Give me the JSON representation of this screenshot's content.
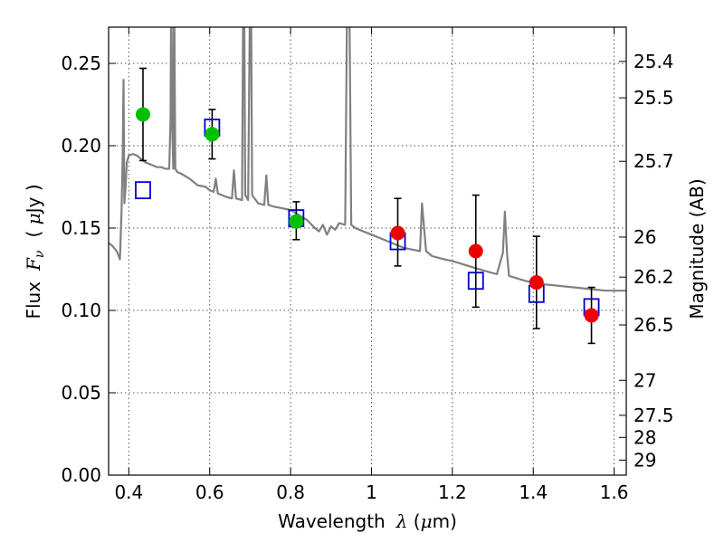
{
  "chart_data": {
    "type": "scatter",
    "xlabel_text": "Wavelength",
    "xlabel_symbol": "λ",
    "xlabel_unit_open": " (",
    "xlabel_unit_mu": "μ",
    "xlabel_unit_rest": "m)",
    "ylabel_text": "Flux",
    "ylabel_symbol_F": "F",
    "ylabel_symbol_sub": "ν",
    "ylabel_unit_open": "( ",
    "ylabel_unit_mu": "μ",
    "ylabel_unit_rest": "Jy )",
    "y2label": "Magnitude (AB)",
    "xlim": [
      0.35,
      1.63
    ],
    "ylim": [
      0.0,
      0.272
    ],
    "grid": true,
    "x_ticks": [
      0.4,
      0.6,
      0.8,
      1.0,
      1.2,
      1.4,
      1.6
    ],
    "x_tick_labels": [
      "0.4",
      "0.6",
      "0.8",
      "1",
      "1.2",
      "1.4",
      "1.6"
    ],
    "y_ticks": [
      0.0,
      0.05,
      0.1,
      0.15,
      0.2,
      0.25
    ],
    "y_tick_labels": [
      "0.00",
      "0.05",
      "0.10",
      "0.15",
      "0.20",
      "0.25"
    ],
    "y2_ticks": [
      25.4,
      25.5,
      25.7,
      26,
      26.2,
      26.5,
      27,
      27.5,
      28,
      29
    ],
    "y2_tick_labels": [
      "25.4",
      "25.5",
      "25.7",
      "26",
      "26.2",
      "26.5",
      "27",
      "27.5",
      "28",
      "29"
    ],
    "colors": {
      "template": "#808080",
      "green": "#00c000",
      "red": "#ee0000",
      "model": "#0000cc",
      "grid": "#555555",
      "errorbar": "#000000"
    },
    "series": [
      {
        "kind": "observed-green",
        "points": [
          {
            "x": 0.435,
            "y": 0.219,
            "err_low": 0.028,
            "err_high": 0.028
          },
          {
            "x": 0.606,
            "y": 0.207,
            "err_low": 0.015,
            "err_high": 0.015
          },
          {
            "x": 0.814,
            "y": 0.154,
            "err_low": 0.011,
            "err_high": 0.012
          }
        ]
      },
      {
        "kind": "observed-red",
        "points": [
          {
            "x": 1.065,
            "y": 0.147,
            "err_low": 0.02,
            "err_high": 0.021
          },
          {
            "x": 1.258,
            "y": 0.136,
            "err_low": 0.034,
            "err_high": 0.034
          },
          {
            "x": 1.408,
            "y": 0.117,
            "err_low": 0.028,
            "err_high": 0.028
          },
          {
            "x": 1.544,
            "y": 0.097,
            "err_low": 0.017,
            "err_high": 0.017
          }
        ]
      },
      {
        "kind": "model-squares",
        "points": [
          {
            "x": 0.435,
            "y": 0.173
          },
          {
            "x": 0.606,
            "y": 0.211
          },
          {
            "x": 0.814,
            "y": 0.156
          },
          {
            "x": 1.065,
            "y": 0.142
          },
          {
            "x": 1.258,
            "y": 0.118
          },
          {
            "x": 1.408,
            "y": 0.11
          },
          {
            "x": 1.544,
            "y": 0.102
          }
        ]
      },
      {
        "kind": "template-spectrum",
        "points": [
          [
            0.35,
            0.141
          ],
          [
            0.36,
            0.139
          ],
          [
            0.37,
            0.136
          ],
          [
            0.375,
            0.133
          ],
          [
            0.378,
            0.131
          ],
          [
            0.382,
            0.16
          ],
          [
            0.385,
            0.195
          ],
          [
            0.387,
            0.24
          ],
          [
            0.389,
            0.165
          ],
          [
            0.392,
            0.175
          ],
          [
            0.395,
            0.19
          ],
          [
            0.4,
            0.194
          ],
          [
            0.41,
            0.195
          ],
          [
            0.42,
            0.194
          ],
          [
            0.43,
            0.192
          ],
          [
            0.44,
            0.19
          ],
          [
            0.45,
            0.189
          ],
          [
            0.46,
            0.188
          ],
          [
            0.47,
            0.187
          ],
          [
            0.48,
            0.187
          ],
          [
            0.49,
            0.186
          ],
          [
            0.5,
            0.186
          ],
          [
            0.503,
            0.215
          ],
          [
            0.505,
            0.3
          ],
          [
            0.507,
            0.215
          ],
          [
            0.51,
            0.186
          ],
          [
            0.512,
            0.3
          ],
          [
            0.515,
            0.186
          ],
          [
            0.52,
            0.184
          ],
          [
            0.53,
            0.183
          ],
          [
            0.55,
            0.18
          ],
          [
            0.57,
            0.176
          ],
          [
            0.59,
            0.175
          ],
          [
            0.6,
            0.173
          ],
          [
            0.61,
            0.172
          ],
          [
            0.615,
            0.18
          ],
          [
            0.62,
            0.171
          ],
          [
            0.64,
            0.169
          ],
          [
            0.655,
            0.168
          ],
          [
            0.66,
            0.185
          ],
          [
            0.665,
            0.168
          ],
          [
            0.68,
            0.167
          ],
          [
            0.683,
            0.3
          ],
          [
            0.685,
            0.3
          ],
          [
            0.688,
            0.17
          ],
          [
            0.695,
            0.167
          ],
          [
            0.7,
            0.3
          ],
          [
            0.702,
            0.3
          ],
          [
            0.705,
            0.17
          ],
          [
            0.72,
            0.165
          ],
          [
            0.735,
            0.164
          ],
          [
            0.74,
            0.182
          ],
          [
            0.745,
            0.164
          ],
          [
            0.76,
            0.163
          ],
          [
            0.78,
            0.162
          ],
          [
            0.8,
            0.161
          ],
          [
            0.82,
            0.158
          ],
          [
            0.84,
            0.155
          ],
          [
            0.86,
            0.15
          ],
          [
            0.87,
            0.148
          ],
          [
            0.88,
            0.152
          ],
          [
            0.89,
            0.146
          ],
          [
            0.9,
            0.151
          ],
          [
            0.91,
            0.149
          ],
          [
            0.92,
            0.153
          ],
          [
            0.935,
            0.152
          ],
          [
            0.94,
            0.3
          ],
          [
            0.945,
            0.3
          ],
          [
            0.95,
            0.152
          ],
          [
            0.96,
            0.15
          ],
          [
            0.98,
            0.148
          ],
          [
            1.0,
            0.146
          ],
          [
            1.02,
            0.144
          ],
          [
            1.05,
            0.141
          ],
          [
            1.08,
            0.138
          ],
          [
            1.1,
            0.137
          ],
          [
            1.12,
            0.136
          ],
          [
            1.125,
            0.165
          ],
          [
            1.135,
            0.136
          ],
          [
            1.15,
            0.133
          ],
          [
            1.18,
            0.131
          ],
          [
            1.2,
            0.13
          ],
          [
            1.24,
            0.127
          ],
          [
            1.28,
            0.124
          ],
          [
            1.31,
            0.122
          ],
          [
            1.325,
            0.135
          ],
          [
            1.33,
            0.16
          ],
          [
            1.335,
            0.135
          ],
          [
            1.34,
            0.121
          ],
          [
            1.38,
            0.118
          ],
          [
            1.42,
            0.116
          ],
          [
            1.46,
            0.115
          ],
          [
            1.5,
            0.114
          ],
          [
            1.54,
            0.113
          ],
          [
            1.58,
            0.112
          ],
          [
            1.63,
            0.112
          ]
        ]
      }
    ]
  }
}
